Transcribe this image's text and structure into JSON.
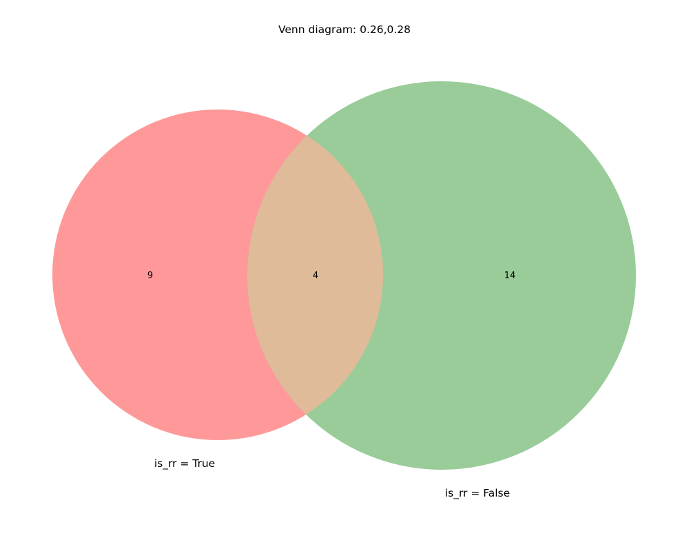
{
  "chart_data": {
    "type": "venn",
    "title": "Venn diagram: 0.26,0.28",
    "sets": [
      {
        "name": "is_rr = True",
        "color": "#ff9999"
      },
      {
        "name": "is_rr = False",
        "color": "#99cc99"
      }
    ],
    "overlap_color": "#dfbb99",
    "regions": [
      {
        "key": "only_true",
        "label": "9",
        "value": 9
      },
      {
        "key": "both",
        "label": "4",
        "value": 4
      },
      {
        "key": "only_false",
        "label": "14",
        "value": 14
      }
    ]
  }
}
